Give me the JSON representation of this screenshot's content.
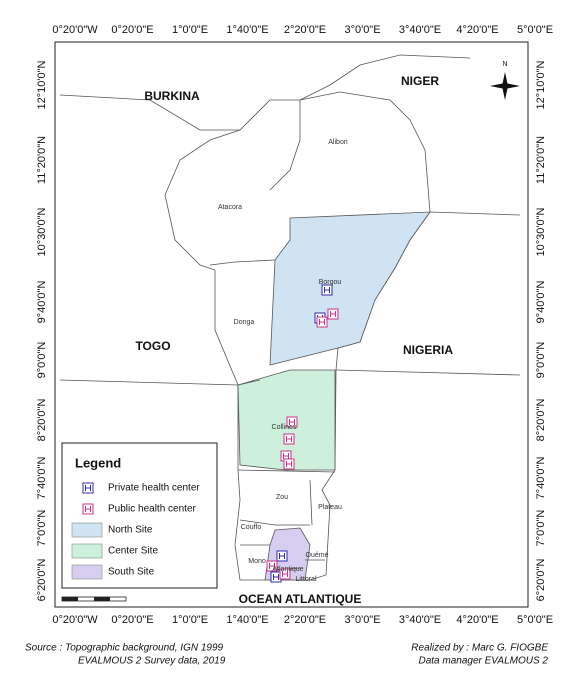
{
  "map": {
    "lon_labels": [
      "0°20'0\"W",
      "0°20'0\"E",
      "1°0'0\"E",
      "1°40'0\"E",
      "2°20'0\"E",
      "3°0'0\"E",
      "3°40'0\"E",
      "4°20'0\"E",
      "5°0'0\"E"
    ],
    "lat_labels": [
      "12°10'0\"N",
      "11°20'0\"N",
      "10°30'0\"N",
      "9°40'0\"N",
      "9°0'0\"N",
      "8°20'0\"N",
      "7°40'0\"N",
      "7°0'0\"N",
      "6°20'0\"N"
    ],
    "countries": [
      "BURKINA",
      "NIGER",
      "TOGO",
      "NIGERIA"
    ],
    "ocean": "OCEAN ATLANTIQUE",
    "departments": [
      "Alibori",
      "Atacora",
      "Borgou",
      "Donga",
      "Collines",
      "Zou",
      "Plateau",
      "Couffo",
      "Mono",
      "Ouémé",
      "Atlantique",
      "Littoral"
    ],
    "compass": "N"
  },
  "legend": {
    "title": "Legend",
    "items": [
      "Private health center",
      "Public health center",
      "North Site",
      "Center Site",
      "South Site"
    ]
  },
  "footer": {
    "source": [
      "Source : Topographic background, IGN 1999",
      "EVALMOUS 2 Survey data, 2019"
    ],
    "credits": [
      "Realized by : Marc G. FIOGBE",
      "Data manager EVALMOUS 2"
    ]
  }
}
